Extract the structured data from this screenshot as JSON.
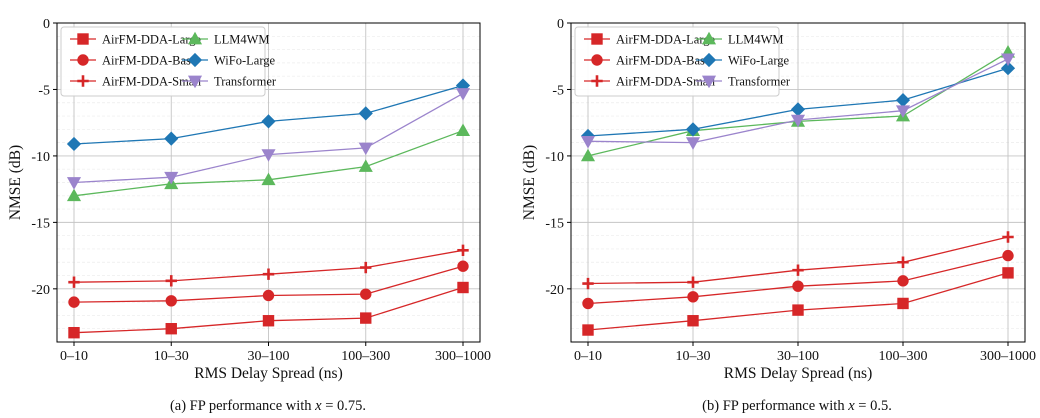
{
  "figure": {
    "captions": [
      {
        "prefix": "(a) FP performance with ",
        "var": "x",
        "suffix": " = 0.75."
      },
      {
        "prefix": "(b) FP performance with ",
        "var": "x",
        "suffix": " = 0.5."
      }
    ]
  },
  "chart_data": [
    {
      "type": "line",
      "title": "",
      "xlabel": "RMS Delay Spread (ns)",
      "ylabel": "NMSE (dB)",
      "categories": [
        "0–10",
        "10–30",
        "30–100",
        "100–300",
        "300–1000"
      ],
      "ylim": [
        -24,
        0
      ],
      "yticks": [
        0,
        -5,
        -10,
        -15,
        -20
      ],
      "grid": true,
      "legend_position": "top-left",
      "series": [
        {
          "name": "AirFM-DDA-Large",
          "color": "#d62728",
          "marker": "square",
          "values": [
            -23.3,
            -23.0,
            -22.4,
            -22.2,
            -19.9
          ]
        },
        {
          "name": "AirFM-DDA-Base",
          "color": "#d62728",
          "marker": "circle",
          "values": [
            -21.0,
            -20.9,
            -20.5,
            -20.4,
            -18.3
          ]
        },
        {
          "name": "AirFM-DDA-Small",
          "color": "#d62728",
          "marker": "plus",
          "values": [
            -19.5,
            -19.4,
            -18.9,
            -18.4,
            -17.1
          ]
        },
        {
          "name": "LLM4WM",
          "color": "#5cb85c",
          "marker": "triangle-up",
          "values": [
            -13.0,
            -12.1,
            -11.8,
            -10.8,
            -8.1
          ]
        },
        {
          "name": "WiFo-Large",
          "color": "#1f77b4",
          "marker": "diamond",
          "values": [
            -9.1,
            -8.7,
            -7.4,
            -6.8,
            -4.7
          ]
        },
        {
          "name": "Transformer",
          "color": "#9b84cc",
          "marker": "triangle-down",
          "values": [
            -12.0,
            -11.6,
            -9.9,
            -9.4,
            -5.3
          ]
        }
      ]
    },
    {
      "type": "line",
      "title": "",
      "xlabel": "RMS Delay Spread (ns)",
      "ylabel": "NMSE (dB)",
      "categories": [
        "0–10",
        "10–30",
        "30–100",
        "100–300",
        "300–1000"
      ],
      "ylim": [
        -24,
        0
      ],
      "yticks": [
        0,
        -5,
        -10,
        -15,
        -20
      ],
      "grid": true,
      "legend_position": "top-left",
      "series": [
        {
          "name": "AirFM-DDA-Large",
          "color": "#d62728",
          "marker": "square",
          "values": [
            -23.1,
            -22.4,
            -21.6,
            -21.1,
            -18.8
          ]
        },
        {
          "name": "AirFM-DDA-Base",
          "color": "#d62728",
          "marker": "circle",
          "values": [
            -21.1,
            -20.6,
            -19.8,
            -19.4,
            -17.5
          ]
        },
        {
          "name": "AirFM-DDA-Small",
          "color": "#d62728",
          "marker": "plus",
          "values": [
            -19.6,
            -19.5,
            -18.6,
            -18.0,
            -16.1
          ]
        },
        {
          "name": "LLM4WM",
          "color": "#5cb85c",
          "marker": "triangle-up",
          "values": [
            -10.0,
            -8.1,
            -7.4,
            -7.0,
            -2.2
          ]
        },
        {
          "name": "WiFo-Large",
          "color": "#1f77b4",
          "marker": "diamond",
          "values": [
            -8.5,
            -8.0,
            -6.5,
            -5.8,
            -3.4
          ]
        },
        {
          "name": "Transformer",
          "color": "#9b84cc",
          "marker": "triangle-down",
          "values": [
            -8.9,
            -9.0,
            -7.3,
            -6.6,
            -2.7
          ]
        }
      ]
    }
  ]
}
